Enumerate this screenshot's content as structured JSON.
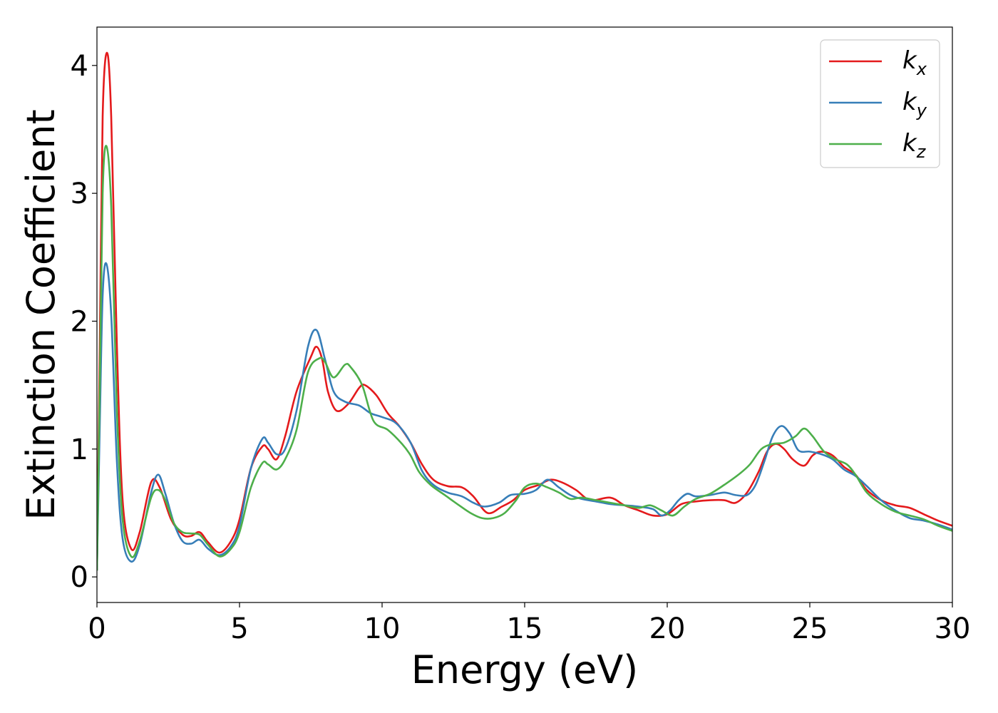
{
  "chart_data": {
    "type": "line",
    "xlabel": "Energy (eV)",
    "ylabel": "Extinction Coefficient",
    "xlim": [
      0,
      30
    ],
    "ylim": [
      -0.2,
      4.3
    ],
    "xticks": [
      0,
      5,
      10,
      15,
      20,
      25,
      30
    ],
    "yticks": [
      0,
      1,
      2,
      3,
      4
    ],
    "grid": false,
    "legend_position": "top-right",
    "colors": {
      "k_x": "#e41a1c",
      "k_y": "#377eb8",
      "k_z": "#4daf4a"
    },
    "series": [
      {
        "name": "k_x",
        "label_main": "k",
        "label_sub": "x",
        "color": "#e41a1c",
        "points": [
          [
            0,
            0.05
          ],
          [
            0.1,
            1.8
          ],
          [
            0.2,
            3.6
          ],
          [
            0.35,
            4.1
          ],
          [
            0.5,
            3.6
          ],
          [
            0.7,
            1.8
          ],
          [
            0.9,
            0.6
          ],
          [
            1.2,
            0.22
          ],
          [
            1.5,
            0.35
          ],
          [
            1.9,
            0.74
          ],
          [
            2.2,
            0.7
          ],
          [
            2.6,
            0.45
          ],
          [
            3.0,
            0.33
          ],
          [
            3.3,
            0.32
          ],
          [
            3.6,
            0.35
          ],
          [
            3.9,
            0.27
          ],
          [
            4.3,
            0.19
          ],
          [
            4.7,
            0.28
          ],
          [
            5.0,
            0.45
          ],
          [
            5.4,
            0.85
          ],
          [
            5.8,
            1.02
          ],
          [
            6.0,
            1.0
          ],
          [
            6.3,
            0.92
          ],
          [
            6.6,
            1.1
          ],
          [
            7.0,
            1.45
          ],
          [
            7.5,
            1.72
          ],
          [
            7.7,
            1.8
          ],
          [
            7.9,
            1.7
          ],
          [
            8.1,
            1.45
          ],
          [
            8.4,
            1.3
          ],
          [
            8.8,
            1.35
          ],
          [
            9.2,
            1.48
          ],
          [
            9.4,
            1.5
          ],
          [
            9.8,
            1.42
          ],
          [
            10.2,
            1.28
          ],
          [
            10.6,
            1.18
          ],
          [
            11.0,
            1.05
          ],
          [
            11.4,
            0.88
          ],
          [
            11.8,
            0.76
          ],
          [
            12.3,
            0.71
          ],
          [
            12.8,
            0.7
          ],
          [
            13.2,
            0.63
          ],
          [
            13.7,
            0.5
          ],
          [
            14.2,
            0.55
          ],
          [
            14.6,
            0.6
          ],
          [
            15.0,
            0.68
          ],
          [
            15.5,
            0.72
          ],
          [
            15.9,
            0.76
          ],
          [
            16.3,
            0.74
          ],
          [
            16.8,
            0.68
          ],
          [
            17.3,
            0.6
          ],
          [
            18.0,
            0.62
          ],
          [
            18.5,
            0.56
          ],
          [
            19.0,
            0.52
          ],
          [
            19.5,
            0.48
          ],
          [
            20.0,
            0.49
          ],
          [
            20.5,
            0.57
          ],
          [
            21.0,
            0.59
          ],
          [
            21.5,
            0.6
          ],
          [
            22.0,
            0.6
          ],
          [
            22.4,
            0.58
          ],
          [
            22.8,
            0.66
          ],
          [
            23.2,
            0.82
          ],
          [
            23.5,
            0.98
          ],
          [
            23.8,
            1.04
          ],
          [
            24.1,
            1.0
          ],
          [
            24.4,
            0.92
          ],
          [
            24.8,
            0.87
          ],
          [
            25.1,
            0.95
          ],
          [
            25.4,
            0.98
          ],
          [
            25.8,
            0.95
          ],
          [
            26.2,
            0.86
          ],
          [
            26.6,
            0.8
          ],
          [
            27.0,
            0.68
          ],
          [
            27.5,
            0.6
          ],
          [
            28.0,
            0.56
          ],
          [
            28.5,
            0.54
          ],
          [
            29.0,
            0.49
          ],
          [
            29.5,
            0.44
          ],
          [
            30.0,
            0.4
          ]
        ]
      },
      {
        "name": "k_y",
        "label_main": "k",
        "label_sub": "y",
        "color": "#377eb8",
        "points": [
          [
            0,
            0.05
          ],
          [
            0.1,
            1.2
          ],
          [
            0.2,
            2.2
          ],
          [
            0.33,
            2.45
          ],
          [
            0.5,
            2.05
          ],
          [
            0.7,
            0.9
          ],
          [
            0.9,
            0.3
          ],
          [
            1.2,
            0.12
          ],
          [
            1.5,
            0.25
          ],
          [
            1.9,
            0.66
          ],
          [
            2.15,
            0.8
          ],
          [
            2.4,
            0.65
          ],
          [
            2.7,
            0.42
          ],
          [
            3.0,
            0.28
          ],
          [
            3.3,
            0.26
          ],
          [
            3.6,
            0.29
          ],
          [
            3.9,
            0.22
          ],
          [
            4.3,
            0.17
          ],
          [
            4.7,
            0.24
          ],
          [
            5.0,
            0.4
          ],
          [
            5.4,
            0.85
          ],
          [
            5.8,
            1.08
          ],
          [
            6.0,
            1.05
          ],
          [
            6.3,
            0.96
          ],
          [
            6.6,
            1.0
          ],
          [
            7.0,
            1.3
          ],
          [
            7.4,
            1.8
          ],
          [
            7.7,
            1.93
          ],
          [
            8.0,
            1.7
          ],
          [
            8.3,
            1.45
          ],
          [
            8.7,
            1.37
          ],
          [
            9.2,
            1.34
          ],
          [
            9.6,
            1.28
          ],
          [
            10.0,
            1.25
          ],
          [
            10.5,
            1.2
          ],
          [
            11.0,
            1.05
          ],
          [
            11.4,
            0.83
          ],
          [
            11.8,
            0.72
          ],
          [
            12.3,
            0.66
          ],
          [
            12.8,
            0.63
          ],
          [
            13.2,
            0.58
          ],
          [
            13.6,
            0.55
          ],
          [
            14.1,
            0.58
          ],
          [
            14.5,
            0.64
          ],
          [
            15.0,
            0.65
          ],
          [
            15.4,
            0.68
          ],
          [
            15.8,
            0.76
          ],
          [
            16.2,
            0.7
          ],
          [
            16.6,
            0.64
          ],
          [
            17.0,
            0.61
          ],
          [
            17.5,
            0.59
          ],
          [
            18.0,
            0.57
          ],
          [
            18.5,
            0.56
          ],
          [
            19.0,
            0.55
          ],
          [
            19.5,
            0.53
          ],
          [
            19.8,
            0.48
          ],
          [
            20.1,
            0.52
          ],
          [
            20.4,
            0.6
          ],
          [
            20.7,
            0.65
          ],
          [
            21.0,
            0.63
          ],
          [
            21.5,
            0.64
          ],
          [
            22.0,
            0.66
          ],
          [
            22.4,
            0.64
          ],
          [
            22.8,
            0.64
          ],
          [
            23.1,
            0.72
          ],
          [
            23.4,
            0.9
          ],
          [
            23.7,
            1.1
          ],
          [
            24.0,
            1.18
          ],
          [
            24.3,
            1.12
          ],
          [
            24.6,
            0.99
          ],
          [
            25.0,
            0.98
          ],
          [
            25.4,
            0.96
          ],
          [
            25.8,
            0.92
          ],
          [
            26.2,
            0.84
          ],
          [
            26.6,
            0.79
          ],
          [
            27.0,
            0.71
          ],
          [
            27.5,
            0.6
          ],
          [
            28.0,
            0.52
          ],
          [
            28.5,
            0.46
          ],
          [
            29.0,
            0.44
          ],
          [
            29.5,
            0.41
          ],
          [
            30.0,
            0.37
          ]
        ]
      },
      {
        "name": "k_z",
        "label_main": "k",
        "label_sub": "z",
        "color": "#4daf4a",
        "points": [
          [
            0,
            0.05
          ],
          [
            0.1,
            1.5
          ],
          [
            0.2,
            3.0
          ],
          [
            0.33,
            3.37
          ],
          [
            0.5,
            2.9
          ],
          [
            0.7,
            1.3
          ],
          [
            0.9,
            0.45
          ],
          [
            1.2,
            0.16
          ],
          [
            1.5,
            0.28
          ],
          [
            1.9,
            0.62
          ],
          [
            2.15,
            0.68
          ],
          [
            2.4,
            0.6
          ],
          [
            2.7,
            0.42
          ],
          [
            3.0,
            0.35
          ],
          [
            3.3,
            0.34
          ],
          [
            3.6,
            0.33
          ],
          [
            3.9,
            0.25
          ],
          [
            4.3,
            0.16
          ],
          [
            4.7,
            0.22
          ],
          [
            5.0,
            0.35
          ],
          [
            5.4,
            0.7
          ],
          [
            5.8,
            0.89
          ],
          [
            6.0,
            0.88
          ],
          [
            6.3,
            0.84
          ],
          [
            6.6,
            0.92
          ],
          [
            7.0,
            1.15
          ],
          [
            7.4,
            1.6
          ],
          [
            7.8,
            1.71
          ],
          [
            8.0,
            1.68
          ],
          [
            8.3,
            1.56
          ],
          [
            8.7,
            1.66
          ],
          [
            8.9,
            1.64
          ],
          [
            9.3,
            1.5
          ],
          [
            9.7,
            1.22
          ],
          [
            10.2,
            1.15
          ],
          [
            10.7,
            1.04
          ],
          [
            11.0,
            0.95
          ],
          [
            11.3,
            0.82
          ],
          [
            11.7,
            0.72
          ],
          [
            12.2,
            0.64
          ],
          [
            12.7,
            0.56
          ],
          [
            13.1,
            0.5
          ],
          [
            13.5,
            0.46
          ],
          [
            13.9,
            0.46
          ],
          [
            14.3,
            0.5
          ],
          [
            14.7,
            0.6
          ],
          [
            15.0,
            0.7
          ],
          [
            15.4,
            0.73
          ],
          [
            15.8,
            0.7
          ],
          [
            16.2,
            0.66
          ],
          [
            16.6,
            0.61
          ],
          [
            17.0,
            0.62
          ],
          [
            17.5,
            0.6
          ],
          [
            18.0,
            0.58
          ],
          [
            18.5,
            0.56
          ],
          [
            19.0,
            0.54
          ],
          [
            19.4,
            0.56
          ],
          [
            19.8,
            0.52
          ],
          [
            20.2,
            0.48
          ],
          [
            20.6,
            0.55
          ],
          [
            21.0,
            0.61
          ],
          [
            21.5,
            0.65
          ],
          [
            22.0,
            0.72
          ],
          [
            22.5,
            0.8
          ],
          [
            22.9,
            0.88
          ],
          [
            23.3,
            1.0
          ],
          [
            23.7,
            1.04
          ],
          [
            24.1,
            1.05
          ],
          [
            24.5,
            1.1
          ],
          [
            24.8,
            1.16
          ],
          [
            25.1,
            1.1
          ],
          [
            25.5,
            0.98
          ],
          [
            25.9,
            0.92
          ],
          [
            26.3,
            0.88
          ],
          [
            26.6,
            0.8
          ],
          [
            27.0,
            0.66
          ],
          [
            27.5,
            0.57
          ],
          [
            28.0,
            0.51
          ],
          [
            28.5,
            0.48
          ],
          [
            29.0,
            0.45
          ],
          [
            29.5,
            0.4
          ],
          [
            30.0,
            0.36
          ]
        ]
      }
    ]
  }
}
